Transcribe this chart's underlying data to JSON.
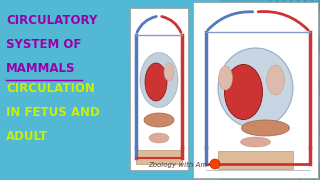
{
  "bg_color": "#52b8d4",
  "bg_color_right": "#3a9ab8",
  "title_line1": "CIRCULATORY",
  "title_line2": "SYSTEM OF",
  "title_line3": "MAMMALS",
  "subtitle_line1": "CIRCULATION",
  "subtitle_line2": "IN FETUS AND",
  "subtitle_line3": "ADULT",
  "title_color": "#9900aa",
  "subtitle_color": "#ccee00",
  "watermark": "Zoology with Am",
  "watermark_color": "#444444",
  "diag_red": "#cc3333",
  "diag_blue": "#5577bb",
  "diag_blue_light": "#8899cc",
  "diag_heart_dark": "#993333",
  "diag_heart_blue": "#8899bb",
  "diag_tan": "#ddbb99",
  "diag_peach": "#ddaa88",
  "diag_liver": "#cc8866",
  "diag_bg": "#ffffff",
  "diag_border": "#999999",
  "logo_orange": "#ee4400",
  "logo_red": "#cc2200"
}
